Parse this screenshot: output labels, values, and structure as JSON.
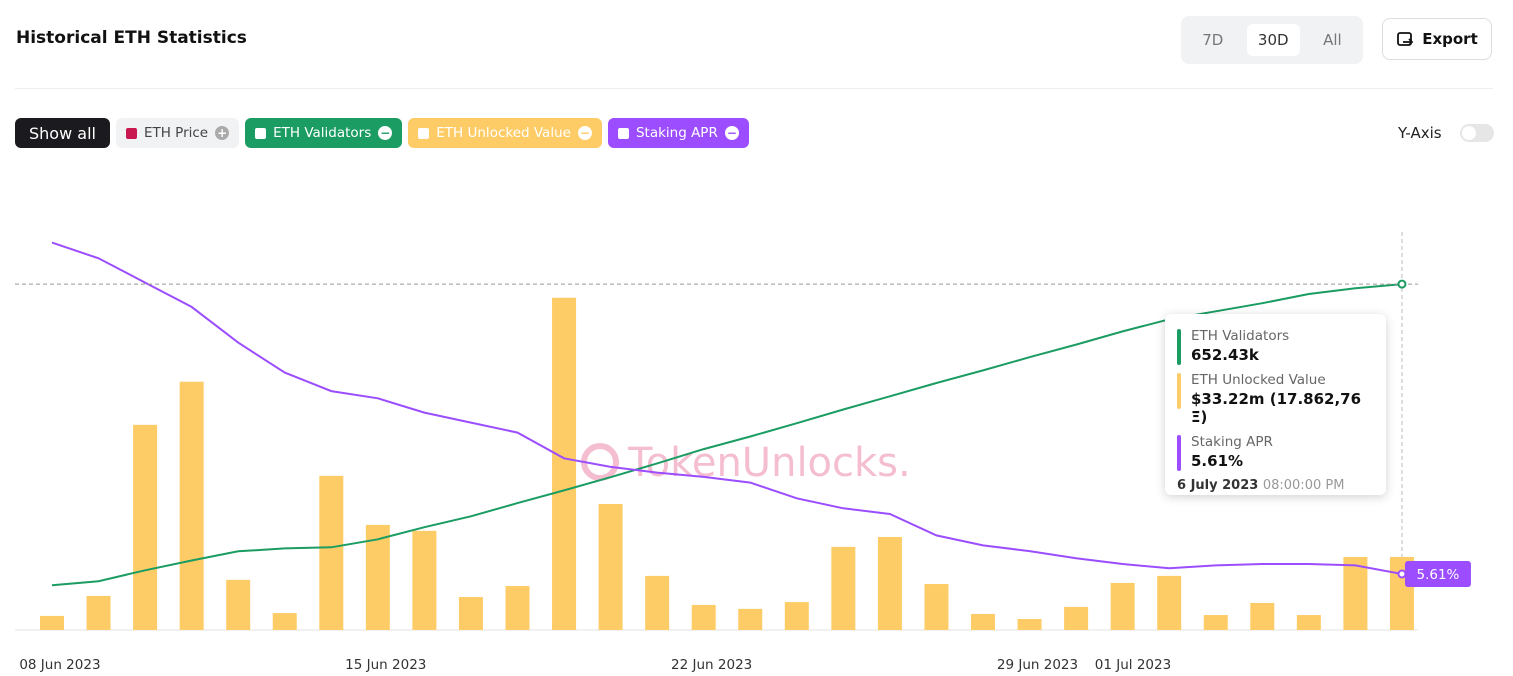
{
  "header": {
    "title": "Historical ETH Statistics",
    "ranges": [
      "7D",
      "30D",
      "All"
    ],
    "export": "Export"
  },
  "filters": {
    "show_all": "Show all",
    "eth_price": "ETH Price",
    "y_axis": "Y-Axis"
  },
  "chart_data": {
    "type": "combo",
    "categories": [
      null,
      "08 Jun 2023",
      null,
      null,
      null,
      null,
      null,
      null,
      "15 Jun 2023",
      null,
      null,
      null,
      null,
      null,
      null,
      "22 Jun 2023",
      null,
      null,
      null,
      null,
      null,
      null,
      "29 Jun 2023",
      null,
      "01 Jul 2023",
      null,
      null,
      null,
      null,
      null
    ],
    "series": [
      {
        "name": "ETH Validators",
        "color": "#1a9c62",
        "type": "line",
        "axis": "y2",
        "values": [
          600.0,
          600.7,
          602.6,
          604.3,
          605.9,
          606.4,
          606.6,
          608.0,
          610.1,
          612.0,
          614.3,
          616.5,
          618.8,
          621.2,
          623.7,
          625.9,
          628.2,
          630.6,
          632.9,
          635.2,
          637.4,
          639.7,
          641.9,
          644.2,
          646.3,
          647.7,
          649.1,
          650.7,
          651.7,
          652.43
        ]
      },
      {
        "name": "ETH Unlocked Value",
        "color": "#fecc66",
        "type": "bar",
        "values": [
          6.4,
          15.5,
          93.3,
          112.9,
          22.8,
          7.7,
          70.1,
          47.8,
          45.1,
          15.0,
          20.0,
          151.1,
          57.3,
          24.6,
          11.4,
          9.6,
          12.7,
          37.8,
          42.3,
          20.9,
          7.3,
          5.0,
          10.5,
          21.4,
          24.6,
          6.8,
          12.3,
          6.8,
          33.2,
          33.22
        ]
      },
      {
        "name": "Staking APR",
        "color": "#9b4dff",
        "type": "line",
        "axis": "y3",
        "end_label": "5.61%",
        "values": [
          7.93,
          7.82,
          7.65,
          7.48,
          7.23,
          7.02,
          6.89,
          6.84,
          6.74,
          6.67,
          6.6,
          6.42,
          6.36,
          6.32,
          6.29,
          6.25,
          6.14,
          6.07,
          6.03,
          5.88,
          5.81,
          5.77,
          5.72,
          5.68,
          5.65,
          5.67,
          5.68,
          5.68,
          5.67,
          5.61
        ]
      }
    ],
    "ylim": [
      0,
      181
    ],
    "y2lim": [
      592.2,
      661.5
    ],
    "y3lim": [
      5.218,
      8.004
    ],
    "watermark": "TokenUnlocks.",
    "tooltip": {
      "items": [
        {
          "label": "ETH Validators",
          "value": "652.43k"
        },
        {
          "label": "ETH Unlocked Value",
          "value": "$33.22m (17.862,76 Ξ)"
        },
        {
          "label": "Staking APR",
          "value": "5.61%"
        }
      ],
      "date": "6 July 2023",
      "time": "08:00:00 PM"
    }
  }
}
